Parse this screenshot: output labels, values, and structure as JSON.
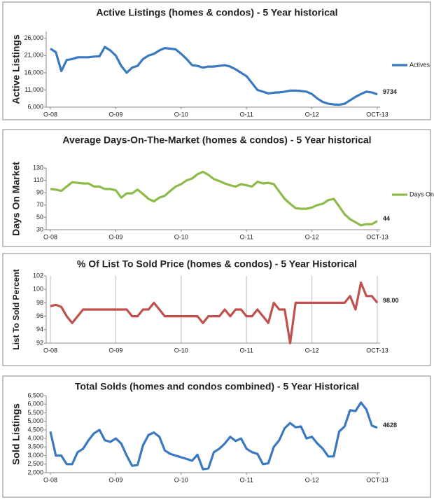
{
  "chart_data": [
    {
      "type": "line",
      "title": "Active Listings (homes & condos) - 5 Year historical",
      "title_color": "#111111",
      "ylabel": "Active Listings",
      "ylabel_color": "#2e75b6",
      "categories": [
        "O-08",
        null,
        null,
        null,
        null,
        null,
        null,
        null,
        null,
        null,
        null,
        null,
        "O-09",
        null,
        null,
        null,
        null,
        null,
        null,
        null,
        null,
        null,
        null,
        null,
        "O-10",
        null,
        null,
        null,
        null,
        null,
        null,
        null,
        null,
        null,
        null,
        null,
        "O-11",
        null,
        null,
        null,
        null,
        null,
        null,
        null,
        null,
        null,
        null,
        null,
        "O-12",
        null,
        null,
        null,
        null,
        null,
        null,
        null,
        null,
        null,
        null,
        null,
        "OCT-13"
      ],
      "series": [
        {
          "name": "Actives",
          "color": "#3a78c0",
          "values": [
            23000,
            22000,
            16500,
            19700,
            20000,
            20500,
            20500,
            20500,
            20700,
            20800,
            23500,
            22500,
            21000,
            18000,
            16000,
            17500,
            18000,
            20000,
            21000,
            21500,
            22500,
            23200,
            23000,
            22800,
            21500,
            20000,
            18200,
            18000,
            17500,
            17800,
            17800,
            18000,
            18200,
            17800,
            17000,
            16000,
            15000,
            13000,
            11000,
            10500,
            10000,
            10200,
            10300,
            10500,
            10800,
            10800,
            10700,
            10500,
            9800,
            8500,
            7500,
            7000,
            6800,
            6700,
            7000,
            8000,
            9000,
            9800,
            10500,
            10300,
            9734
          ],
          "value_labels": [
            null,
            null,
            null,
            null,
            null,
            null,
            null,
            null,
            null,
            null,
            null,
            null,
            null,
            null,
            null,
            null,
            null,
            null,
            null,
            null,
            null,
            null,
            null,
            null,
            null,
            null,
            null,
            null,
            null,
            null,
            null,
            null,
            null,
            null,
            null,
            null,
            null,
            null,
            null,
            null,
            null,
            null,
            null,
            null,
            null,
            null,
            null,
            null,
            null,
            null,
            null,
            null,
            null,
            null,
            null,
            null,
            null,
            null,
            null,
            null,
            "9734"
          ]
        }
      ],
      "legend": true,
      "grid": "none",
      "ylim": [
        6000,
        28000
      ],
      "yticks": [
        {
          "value": 6000,
          "label": "6,000"
        },
        {
          "value": 11000,
          "label": "11,000"
        },
        {
          "value": 16000,
          "label": "16,000"
        },
        {
          "value": 21000,
          "label": "21,000"
        },
        {
          "value": 26000,
          "label": "26,000"
        }
      ]
    },
    {
      "type": "line",
      "title": "Average Days-On-The-Market (homes & condos) - 5 Year historical",
      "title_color": "#5f9a22",
      "ylabel": "Days On Market",
      "ylabel_color": "#5f9a22",
      "categories": [
        "O-08",
        null,
        null,
        null,
        null,
        null,
        null,
        null,
        null,
        null,
        null,
        null,
        "O-09",
        null,
        null,
        null,
        null,
        null,
        null,
        null,
        null,
        null,
        null,
        null,
        "O-10",
        null,
        null,
        null,
        null,
        null,
        null,
        null,
        null,
        null,
        null,
        null,
        "O-11",
        null,
        null,
        null,
        null,
        null,
        null,
        null,
        null,
        null,
        null,
        null,
        "O-12",
        null,
        null,
        null,
        null,
        null,
        null,
        null,
        null,
        null,
        null,
        null,
        "OCT-13"
      ],
      "series": [
        {
          "name": "Days On",
          "color": "#8dbb4a",
          "values": [
            96,
            95,
            93,
            100,
            107,
            106,
            105,
            105,
            100,
            100,
            96,
            96,
            94,
            82,
            89,
            89,
            95,
            88,
            80,
            76,
            82,
            85,
            93,
            100,
            104,
            110,
            113,
            120,
            124,
            119,
            112,
            109,
            105,
            102,
            100,
            104,
            102,
            100,
            108,
            105,
            106,
            104,
            92,
            80,
            72,
            65,
            64,
            64,
            66,
            70,
            72,
            78,
            80,
            68,
            55,
            47,
            42,
            37,
            39,
            39,
            44
          ],
          "value_labels": [
            null,
            null,
            null,
            null,
            null,
            null,
            null,
            null,
            null,
            null,
            null,
            null,
            null,
            null,
            null,
            null,
            null,
            null,
            null,
            null,
            null,
            null,
            null,
            null,
            null,
            null,
            null,
            null,
            null,
            null,
            null,
            null,
            null,
            null,
            null,
            null,
            null,
            null,
            null,
            null,
            null,
            null,
            null,
            null,
            null,
            null,
            null,
            null,
            null,
            null,
            null,
            null,
            null,
            null,
            null,
            null,
            null,
            null,
            null,
            null,
            "44"
          ]
        }
      ],
      "legend": true,
      "grid": "none",
      "ylim": [
        30,
        130
      ],
      "yticks": [
        30,
        50,
        70,
        90,
        110,
        130
      ]
    },
    {
      "type": "line",
      "title": "% Of List To Sold Price (homes & condos) - 5 Year Historical",
      "title_color": "#c00000",
      "ylabel": "List To Sold Percent",
      "ylabel_color": "#c00000",
      "categories": [
        "O-08",
        null,
        null,
        null,
        null,
        null,
        null,
        null,
        null,
        null,
        null,
        null,
        "O-09",
        null,
        null,
        null,
        null,
        null,
        null,
        null,
        null,
        null,
        null,
        null,
        "O-10",
        null,
        null,
        null,
        null,
        null,
        null,
        null,
        null,
        null,
        null,
        null,
        "O-11",
        null,
        null,
        null,
        null,
        null,
        null,
        null,
        null,
        null,
        null,
        null,
        "O-12",
        null,
        null,
        null,
        null,
        null,
        null,
        null,
        null,
        null,
        null,
        null,
        "OCT-13"
      ],
      "series": [
        {
          "color": "#c0504d",
          "values": [
            97.5,
            97.7,
            97.4,
            96,
            95,
            96,
            97,
            97,
            97,
            97,
            97,
            97,
            97,
            97,
            97,
            96,
            96,
            97,
            97,
            98,
            97,
            96,
            96,
            96,
            96,
            96,
            96,
            96,
            95,
            96,
            96,
            96,
            97,
            96,
            97,
            97,
            96,
            96,
            97,
            96,
            95,
            98,
            97,
            97,
            92,
            98,
            98,
            98,
            98,
            98,
            98,
            98,
            98,
            98,
            98,
            99,
            97,
            101,
            99,
            99,
            98
          ],
          "value_labels": [
            null,
            null,
            null,
            null,
            null,
            null,
            null,
            null,
            null,
            null,
            null,
            null,
            null,
            null,
            null,
            null,
            null,
            null,
            null,
            null,
            null,
            null,
            null,
            null,
            null,
            null,
            null,
            null,
            null,
            null,
            null,
            null,
            null,
            null,
            null,
            null,
            null,
            null,
            null,
            null,
            null,
            null,
            null,
            null,
            null,
            null,
            null,
            null,
            null,
            null,
            null,
            null,
            null,
            null,
            null,
            null,
            null,
            null,
            null,
            null,
            "98.00"
          ]
        }
      ],
      "legend": false,
      "grid": "x",
      "ylim": [
        92,
        102
      ],
      "yticks": [
        92,
        94,
        96,
        98,
        100,
        102
      ]
    },
    {
      "type": "line",
      "title": "Total Solds (homes and condos combined) - 5 Year Historical",
      "title_color": "#1f6fb5",
      "ylabel": "Sold Listings",
      "ylabel_color": "#2e75b6",
      "categories": [
        "O-08",
        null,
        null,
        null,
        null,
        null,
        null,
        null,
        null,
        null,
        null,
        null,
        "O-09",
        null,
        null,
        null,
        null,
        null,
        null,
        null,
        null,
        null,
        null,
        null,
        "O-10",
        null,
        null,
        null,
        null,
        null,
        null,
        null,
        null,
        null,
        null,
        null,
        "O-11",
        null,
        null,
        null,
        null,
        null,
        null,
        null,
        null,
        null,
        null,
        null,
        "O-12",
        null,
        null,
        null,
        null,
        null,
        null,
        null,
        null,
        null,
        null,
        null,
        "OCT-13"
      ],
      "series": [
        {
          "color": "#3a78c0",
          "values": [
            4400,
            3000,
            3000,
            2500,
            2500,
            3200,
            3400,
            3900,
            4300,
            4500,
            3900,
            3800,
            4000,
            3700,
            3000,
            2400,
            2450,
            3600,
            4200,
            4350,
            4100,
            3300,
            3100,
            3000,
            2900,
            2800,
            2700,
            3050,
            2200,
            2250,
            3200,
            3400,
            3700,
            4100,
            3850,
            4000,
            3400,
            3200,
            3100,
            2500,
            2550,
            3500,
            3900,
            4600,
            4900,
            4650,
            4700,
            4000,
            4100,
            3700,
            3400,
            2950,
            2950,
            4400,
            4700,
            5650,
            5600,
            6100,
            5700,
            4750,
            4628
          ],
          "value_labels": [
            null,
            null,
            null,
            null,
            null,
            null,
            null,
            null,
            null,
            null,
            null,
            null,
            null,
            null,
            null,
            null,
            null,
            null,
            null,
            null,
            null,
            null,
            null,
            null,
            null,
            null,
            null,
            null,
            null,
            null,
            null,
            null,
            null,
            null,
            null,
            null,
            null,
            null,
            null,
            null,
            null,
            null,
            null,
            null,
            null,
            null,
            null,
            null,
            null,
            null,
            null,
            null,
            null,
            null,
            null,
            null,
            null,
            null,
            null,
            null,
            "4628"
          ]
        }
      ],
      "legend": false,
      "grid": "none",
      "ylim": [
        2000,
        6500
      ],
      "yticks": [
        {
          "value": 2000,
          "label": "2,000"
        },
        {
          "value": 2500,
          "label": "2,500"
        },
        {
          "value": 3000,
          "label": "3,000"
        },
        {
          "value": 3500,
          "label": "3,500"
        },
        {
          "value": 4000,
          "label": "4,000"
        },
        {
          "value": 4500,
          "label": "4,500"
        },
        {
          "value": 5000,
          "label": "5,000"
        },
        {
          "value": 5500,
          "label": "5,500"
        },
        {
          "value": 6000,
          "label": "6,000"
        },
        {
          "value": 6500,
          "label": "6,500"
        }
      ]
    }
  ]
}
